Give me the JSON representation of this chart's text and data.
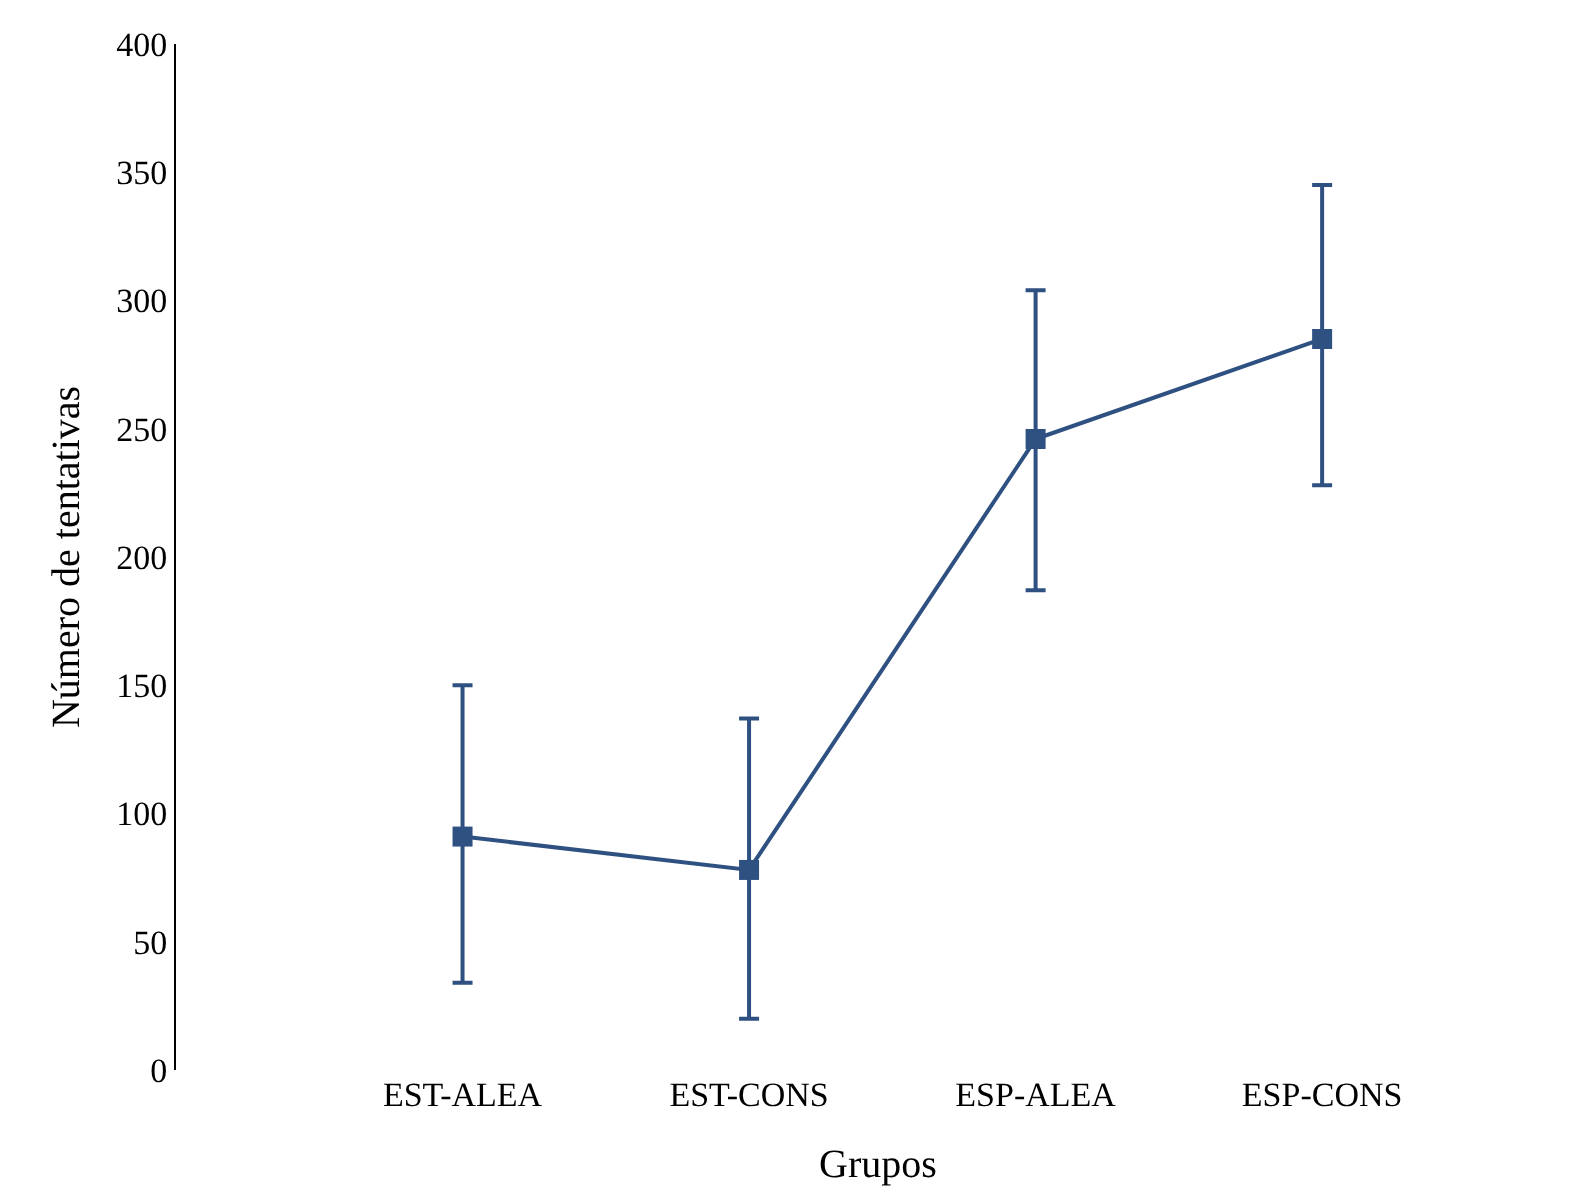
{
  "chart_data": {
    "type": "line",
    "xlabel": "Grupos",
    "ylabel": "Número de tentativas",
    "categories": [
      "EST-ALEA",
      "EST-CONS",
      "ESP-ALEA",
      "ESP-CONS"
    ],
    "series": [
      {
        "color": "#2f5181",
        "values": [
          91,
          78,
          246,
          285
        ],
        "errors": [
          [
            34,
            150
          ],
          [
            20,
            137
          ],
          [
            187,
            304
          ],
          [
            228,
            345
          ]
        ]
      }
    ],
    "ylim": [
      0,
      400
    ],
    "yticks": [
      0,
      50,
      100,
      150,
      200,
      250,
      300,
      350,
      400
    ],
    "marker": "square",
    "line_style": "solid"
  }
}
